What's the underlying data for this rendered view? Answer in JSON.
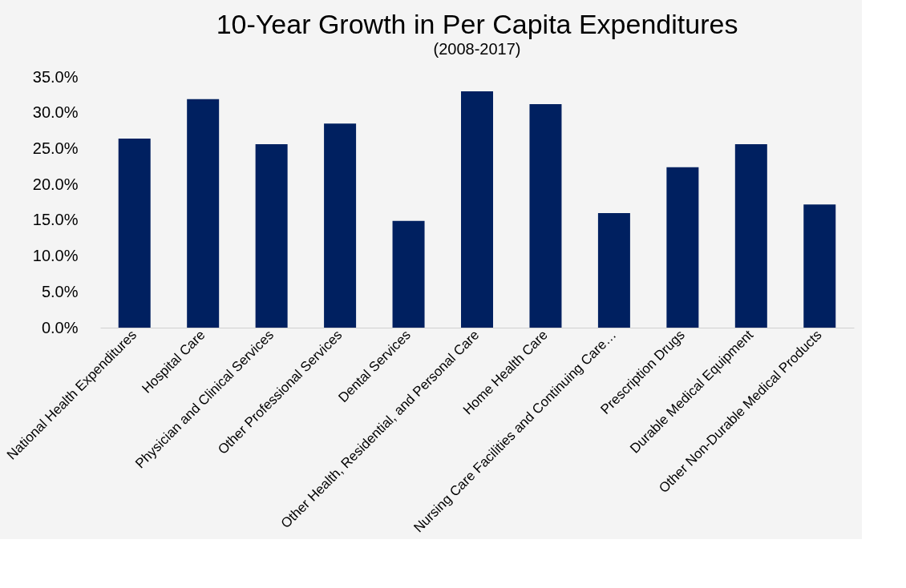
{
  "chart_data": {
    "type": "bar",
    "title": "10-Year Growth in Per Capita Expenditures",
    "subtitle": "(2008-2017)",
    "categories": [
      "National Health Expenditures",
      "Hospital Care",
      "Physician and Clinical Services",
      "Other Professional Services",
      "Dental Services",
      "Other Health, Residential, and Personal Care",
      "Home Health Care",
      "Nursing Care Facilities and Continuing Care…",
      "Prescription Drugs",
      "Durable Medical Equipment",
      "Other Non-Durable Medical Products"
    ],
    "values": [
      26.4,
      31.9,
      25.6,
      28.5,
      14.9,
      33.0,
      31.2,
      16.0,
      22.4,
      25.6,
      17.2
    ],
    "color": "#002060",
    "ylim": [
      0,
      35
    ],
    "yticks": [
      {
        "value": 0,
        "label": "0.0%"
      },
      {
        "value": 5,
        "label": "5.0%"
      },
      {
        "value": 10,
        "label": "10.0%"
      },
      {
        "value": 15,
        "label": "15.0%"
      },
      {
        "value": 20,
        "label": "20.0%"
      },
      {
        "value": 25,
        "label": "25.0%"
      },
      {
        "value": 30,
        "label": "30.0%"
      },
      {
        "value": 35,
        "label": "35.0%"
      }
    ],
    "grid": false
  }
}
